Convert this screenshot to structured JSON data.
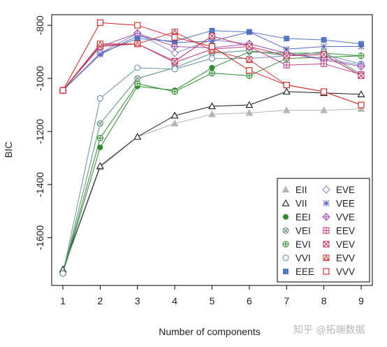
{
  "chart_data": {
    "type": "line",
    "x": [
      1,
      2,
      3,
      4,
      5,
      6,
      7,
      8,
      9
    ],
    "xlabel": "Number of components",
    "ylabel": "BIC",
    "xlim": [
      0.7,
      9.3
    ],
    "ylim": [
      -1780,
      -760
    ],
    "xticks": [
      "1",
      "2",
      "3",
      "4",
      "5",
      "6",
      "7",
      "8",
      "9"
    ],
    "yticks": [
      {
        "value": -800,
        "label": "-800"
      },
      {
        "value": -1000,
        "label": "-1000"
      },
      {
        "value": -1200,
        "label": "-1200"
      },
      {
        "value": -1400,
        "label": "-1400"
      },
      {
        "value": -1600,
        "label": "-1600"
      }
    ],
    "legend_position": "bottom-right",
    "series": [
      {
        "name": "EII",
        "color": "#b5b5b5",
        "marker": "triangle-filled",
        "values": [
          -1730,
          -1335,
          -1220,
          -1170,
          -1135,
          -1130,
          -1120,
          -1120,
          -1115
        ]
      },
      {
        "name": "VII",
        "color": "#1a1a1a",
        "marker": "triangle-open",
        "values": [
          -1720,
          -1330,
          -1220,
          -1140,
          -1105,
          -1100,
          -1050,
          -1055,
          -1060
        ]
      },
      {
        "name": "EEI",
        "color": "#2e8b2e",
        "marker": "circle-filled",
        "values": [
          -1735,
          -1260,
          -1030,
          -1045,
          -960,
          -900,
          -905,
          -905,
          -915
        ]
      },
      {
        "name": "VEI",
        "color": "#5e8c80",
        "marker": "circle-x",
        "values": [
          -1735,
          -1170,
          -1000,
          -960,
          -905,
          -895,
          -915,
          -900,
          -985
        ]
      },
      {
        "name": "EVI",
        "color": "#2e8b2e",
        "marker": "circle-plus",
        "values": [
          -1735,
          -1225,
          -1020,
          -1050,
          -980,
          -990,
          -925,
          -920,
          -915
        ]
      },
      {
        "name": "VVI",
        "color": "#6a8fb0",
        "marker": "circle-open",
        "values": [
          -1735,
          -1075,
          -960,
          -965,
          -925,
          -925,
          -915,
          -910,
          -945
        ]
      },
      {
        "name": "EEE",
        "color": "#5577c5",
        "marker": "square-filled",
        "values": [
          -1045,
          -905,
          -850,
          -860,
          -820,
          -825,
          -850,
          -855,
          -870
        ]
      },
      {
        "name": "EVE",
        "color": "#8a85c8",
        "marker": "diamond-open",
        "values": [
          -1045,
          -905,
          -830,
          -905,
          -855,
          -870,
          -905,
          -925,
          -950
        ]
      },
      {
        "name": "VEE",
        "color": "#5566c5",
        "marker": "asterisk",
        "values": [
          -1045,
          -910,
          -840,
          -865,
          -860,
          -825,
          -890,
          -880,
          -880
        ]
      },
      {
        "name": "VVE",
        "color": "#a352b5",
        "marker": "diamond-plus",
        "values": [
          -1045,
          -880,
          -830,
          -880,
          -885,
          -870,
          -905,
          -930,
          -955
        ]
      },
      {
        "name": "EEV",
        "color": "#b9408a",
        "marker": "square-plus",
        "values": [
          -1045,
          -875,
          -870,
          -940,
          -890,
          -880,
          -950,
          -945,
          -985
        ]
      },
      {
        "name": "VEV",
        "color": "#c0305a",
        "marker": "square-x",
        "values": [
          -1045,
          -880,
          -870,
          -935,
          -840,
          -880,
          -915,
          -910,
          -990
        ]
      },
      {
        "name": "EVV",
        "color": "#c83e3e",
        "marker": "square-triangle",
        "values": [
          -1045,
          -870,
          -870,
          -825,
          -895,
          -930,
          -1025,
          -1050,
          -1100
        ]
      },
      {
        "name": "VVV",
        "color": "#d42020",
        "marker": "square-open",
        "values": [
          -1045,
          -790,
          -800,
          -845,
          -880,
          -970,
          -1025,
          -1050,
          -1100
        ]
      }
    ]
  },
  "watermark": "知乎 @拓端数据"
}
